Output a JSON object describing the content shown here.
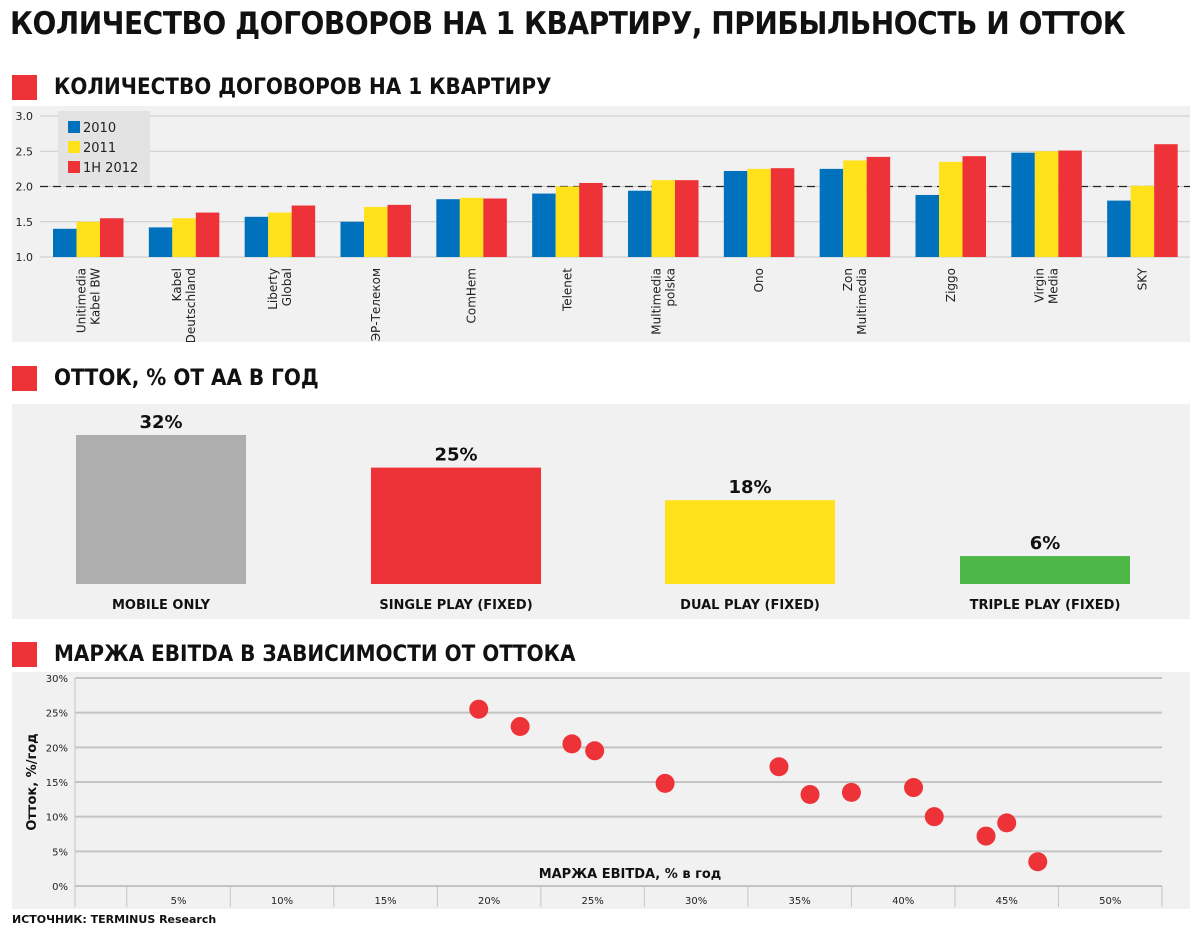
{
  "title": "КОЛИЧЕСТВО ДОГОВОРОВ НА 1 КВАРТИРУ, ПРИБЫЛЬНОСТЬ И ОТТОК",
  "source": "ИСТОЧНИК: TERMINUS Research",
  "colors": {
    "accent": "#ee3338",
    "blue": "#0071bc",
    "yellow": "#ffe21b",
    "red": "#ee3338",
    "grey": "#aeaeae",
    "green": "#4db748"
  },
  "sections": {
    "contracts": {
      "title": "КОЛИЧЕСТВО ДОГОВОРОВ НА 1 КВАРТИРУ"
    },
    "churn": {
      "title": "ОТТОК, % ОТ АА В ГОД"
    },
    "ebitda": {
      "title": "МАРЖА EBITDA В ЗАВИСИМОСТИ ОТ ОТТОКА"
    }
  },
  "chart_data": [
    {
      "type": "bar",
      "title": "КОЛИЧЕСТВО ДОГОВОРОВ НА 1 КВАРТИРУ",
      "categories": [
        [
          "Unitimedia",
          "Kabel BW"
        ],
        [
          "Kabel",
          "Deutschland"
        ],
        [
          "Liberty",
          "Global"
        ],
        [
          "ЭР-Телеком"
        ],
        [
          "ComHem"
        ],
        [
          "Telenet"
        ],
        [
          "Multimedia",
          "polska"
        ],
        [
          "Ono"
        ],
        [
          "Zon",
          "Multimedia"
        ],
        [
          "Ziggo"
        ],
        [
          "Virgin",
          "Media"
        ],
        [
          "SKY"
        ]
      ],
      "series": [
        {
          "name": "2010",
          "color": "#0071bc",
          "values": [
            1.4,
            1.42,
            1.57,
            1.5,
            1.82,
            1.9,
            1.94,
            2.22,
            2.25,
            1.88,
            2.48,
            1.8
          ]
        },
        {
          "name": "2011",
          "color": "#ffe21b",
          "values": [
            1.5,
            1.55,
            1.63,
            1.71,
            1.84,
            2.0,
            2.09,
            2.25,
            2.37,
            2.35,
            2.5,
            2.01
          ]
        },
        {
          "name": "1H 2012",
          "color": "#ee3338",
          "values": [
            1.55,
            1.63,
            1.73,
            1.74,
            1.83,
            2.05,
            2.09,
            2.26,
            2.42,
            2.43,
            2.51,
            2.6
          ]
        }
      ],
      "yticks": [
        "1.0",
        "1.5",
        "2.0",
        "2.5",
        "3.0"
      ],
      "ylim": [
        1.0,
        3.0
      ],
      "reference_line": 2.0,
      "legend": "top-left"
    },
    {
      "type": "bar",
      "title": "ОТТОК, % ОТ АА В ГОД",
      "categories": [
        "MOBILE ONLY",
        "SINGLE PLAY (FIXED)",
        "DUAL PLAY (FIXED)",
        "TRIPLE PLAY (FIXED)"
      ],
      "values": [
        32,
        25,
        18,
        6
      ],
      "labels": [
        "32%",
        "25%",
        "18%",
        "6%"
      ],
      "colors": [
        "#aeaeae",
        "#ee3338",
        "#ffe21b",
        "#4db748"
      ],
      "ylim": [
        0,
        32
      ]
    },
    {
      "type": "scatter",
      "title": "МАРЖА EBITDA В ЗАВИСИМОСТИ ОТ ОТТОКА",
      "xlabel": "МАРЖА EBITDA, % в год",
      "ylabel": "Отток, %/год",
      "xticks": [
        "5%",
        "10%",
        "15%",
        "20%",
        "25%",
        "30%",
        "35%",
        "40%",
        "45%",
        "50%"
      ],
      "yticks": [
        "0%",
        "5%",
        "10%",
        "15%",
        "20%",
        "25%",
        "30%"
      ],
      "xlim": [
        0,
        52.5
      ],
      "ylim": [
        0,
        30
      ],
      "points": [
        {
          "x": 19.5,
          "y": 25.5
        },
        {
          "x": 21.5,
          "y": 23.0
        },
        {
          "x": 24.0,
          "y": 20.5
        },
        {
          "x": 25.1,
          "y": 19.5
        },
        {
          "x": 28.5,
          "y": 14.8
        },
        {
          "x": 34.0,
          "y": 17.2
        },
        {
          "x": 35.5,
          "y": 13.2
        },
        {
          "x": 37.5,
          "y": 13.5
        },
        {
          "x": 40.5,
          "y": 14.2
        },
        {
          "x": 41.5,
          "y": 10.0
        },
        {
          "x": 44.0,
          "y": 7.2
        },
        {
          "x": 45.0,
          "y": 9.1
        },
        {
          "x": 46.5,
          "y": 3.5
        }
      ]
    }
  ]
}
